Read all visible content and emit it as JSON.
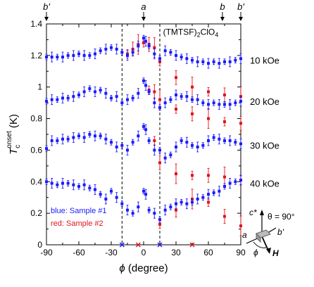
{
  "chart_data": {
    "type": "scatter",
    "title": "",
    "compound": "(TMTSF)2ClO4",
    "xlabel": "ϕ (degree)",
    "ylabel": "Tc onset (K)",
    "xlim": [
      -90,
      90
    ],
    "ylim": [
      0,
      1.4
    ],
    "xticks": [
      "-90",
      "-60",
      "-30",
      "0",
      "30",
      "60",
      "90"
    ],
    "yticks": [
      "0",
      "0.2",
      "0.4",
      "0.6",
      "0.8",
      "1",
      "1.2",
      "1.4"
    ],
    "top_axis_labels": [
      {
        "text": "b'",
        "x": -90
      },
      {
        "text": "a",
        "x": 0
      },
      {
        "text": "b",
        "x": 73
      },
      {
        "text": "b'",
        "x": 90
      }
    ],
    "dashed_lines_x": [
      -20,
      15
    ],
    "field_labels": [
      {
        "text": "10 kOe",
        "y": 1.17
      },
      {
        "text": "20 kOe",
        "y": 0.91
      },
      {
        "text": "30 kOe",
        "y": 0.63
      },
      {
        "text": "40 kOe",
        "y": 0.39
      }
    ],
    "legend": {
      "blue": "blue: Sample #1",
      "red": "red: Sample #2"
    },
    "inset": {
      "theta_label": "θ = 90°",
      "c": "c*",
      "a": "a",
      "b": "b'",
      "phi": "ϕ",
      "H": "H"
    },
    "series": [
      {
        "name": "blue: Sample #1",
        "color": "#1a1aff",
        "groups": [
          {
            "x": [
              -90,
              -85,
              -80,
              -75,
              -70,
              -65,
              -60,
              -55,
              -50,
              -45,
              -40,
              -35,
              -30,
              -25,
              -20,
              -15,
              -10,
              -5,
              0,
              2,
              5,
              10,
              15,
              20,
              25,
              30,
              35,
              40,
              45,
              50,
              55,
              60,
              65,
              70,
              75,
              80,
              85,
              90
            ],
            "y": [
              1.19,
              1.19,
              1.19,
              1.19,
              1.2,
              1.2,
              1.21,
              1.2,
              1.2,
              1.21,
              1.23,
              1.24,
              1.25,
              1.24,
              1.22,
              1.2,
              1.22,
              1.26,
              1.31,
              1.29,
              1.26,
              1.21,
              1.18,
              1.23,
              1.22,
              1.2,
              1.19,
              1.18,
              1.17,
              1.16,
              1.16,
              1.15,
              1.16,
              1.15,
              1.16,
              1.16,
              1.17,
              1.18
            ]
          },
          {
            "x": [
              -90,
              -85,
              -80,
              -75,
              -70,
              -65,
              -60,
              -55,
              -50,
              -45,
              -40,
              -35,
              -30,
              -25,
              -20,
              -15,
              -10,
              -5,
              0,
              2,
              5,
              10,
              15,
              20,
              25,
              30,
              35,
              40,
              45,
              50,
              55,
              60,
              65,
              70,
              75,
              80,
              85,
              90
            ],
            "y": [
              0.91,
              0.92,
              0.92,
              0.93,
              0.93,
              0.94,
              0.95,
              0.97,
              0.99,
              0.97,
              0.98,
              0.96,
              0.93,
              0.94,
              0.9,
              0.92,
              0.93,
              0.96,
              1.04,
              1.01,
              0.97,
              0.9,
              0.87,
              0.9,
              0.92,
              0.95,
              0.94,
              0.94,
              0.92,
              0.92,
              0.9,
              0.89,
              0.9,
              0.89,
              0.89,
              0.89,
              0.9,
              0.91
            ]
          },
          {
            "x": [
              -90,
              -85,
              -80,
              -75,
              -70,
              -65,
              -60,
              -55,
              -50,
              -45,
              -40,
              -35,
              -30,
              -25,
              -20,
              -15,
              -10,
              -5,
              0,
              2,
              5,
              10,
              15,
              20,
              25,
              30,
              35,
              40,
              45,
              50,
              55,
              60,
              65,
              70,
              75,
              80,
              85,
              90
            ],
            "y": [
              0.61,
              0.66,
              0.66,
              0.67,
              0.67,
              0.68,
              0.69,
              0.68,
              0.7,
              0.69,
              0.69,
              0.67,
              0.65,
              0.62,
              0.63,
              0.6,
              0.65,
              0.69,
              0.75,
              0.73,
              0.66,
              0.6,
              0.6,
              0.55,
              0.57,
              0.62,
              0.66,
              0.65,
              0.63,
              0.62,
              0.63,
              0.66,
              0.68,
              0.67,
              0.66,
              0.66,
              0.65,
              0.64
            ]
          },
          {
            "x": [
              -90,
              -85,
              -80,
              -75,
              -70,
              -65,
              -60,
              -55,
              -50,
              -45,
              -40,
              -35,
              -30,
              -25,
              -20,
              -15,
              -10,
              -5,
              0,
              2,
              5,
              10,
              15,
              20,
              25,
              30,
              35,
              40,
              45,
              50,
              55,
              60,
              65,
              70,
              75,
              80,
              85,
              90
            ],
            "y": [
              0.4,
              0.39,
              0.38,
              0.39,
              0.39,
              0.38,
              0.37,
              0.38,
              0.36,
              0.35,
              0.32,
              0.29,
              0.34,
              0.3,
              0.26,
              0.22,
              0.2,
              0.24,
              0.34,
              0.32,
              0.22,
              0.2,
              0.16,
              0.22,
              0.24,
              0.26,
              0.27,
              0.26,
              0.27,
              0.29,
              0.3,
              0.32,
              0.33,
              0.34,
              0.37,
              0.39,
              0.4,
              0.41
            ]
          }
        ]
      },
      {
        "name": "red: Sample #2",
        "color": "#e0141e",
        "groups": [
          {
            "x": [
              -15,
              -10,
              -5,
              0,
              5,
              10,
              15,
              30,
              45,
              60,
              75,
              90
            ],
            "y": [
              1.21,
              1.24,
              1.27,
              1.28,
              1.27,
              1.25,
              1.16,
              1.06,
              1.0,
              0.97,
              0.95,
              0.94
            ]
          },
          {
            "x": [
              5,
              10,
              15,
              30,
              45,
              60,
              75,
              90
            ],
            "y": [
              0.98,
              0.97,
              0.92,
              0.86,
              0.83,
              0.8,
              0.78,
              0.77
            ]
          },
          {
            "x": [
              10,
              15,
              30,
              45,
              60,
              75,
              90
            ],
            "y": [
              0.66,
              0.52,
              0.45,
              0.44,
              0.44,
              0.43,
              0.41
            ]
          },
          {
            "x": [
              15,
              30,
              45,
              60,
              75,
              90
            ],
            "y": [
              0.13,
              0.22,
              0.29,
              0.27,
              0.18,
              0.12
            ]
          }
        ]
      }
    ],
    "x_markers": [
      {
        "x": -20,
        "color": "#1a1aff"
      },
      {
        "x": -5,
        "color": "#e0141e"
      },
      {
        "x": 15,
        "color": "#1a1aff"
      },
      {
        "x": 45,
        "color": "#e0141e"
      }
    ]
  }
}
